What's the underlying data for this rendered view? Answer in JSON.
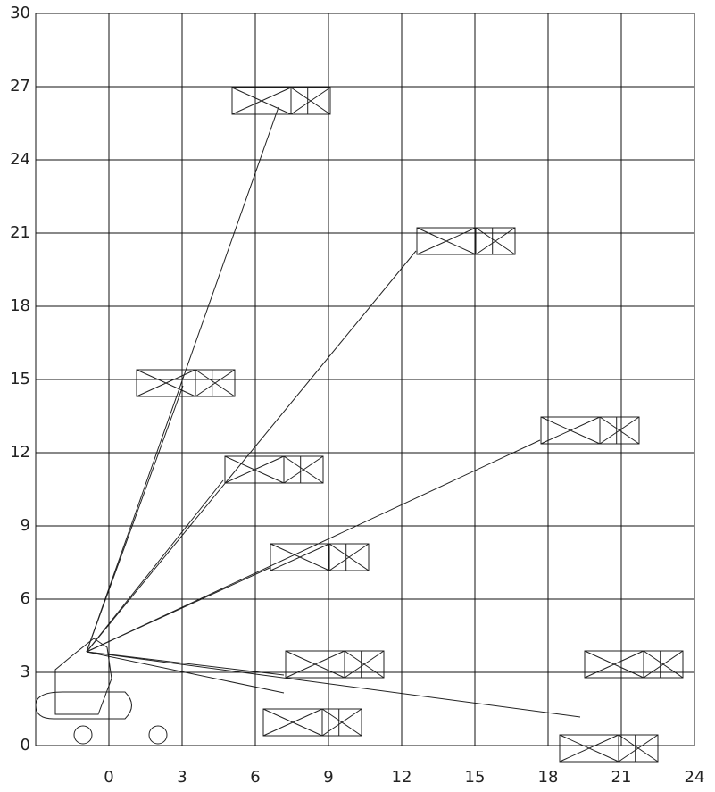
{
  "axes": {
    "xlim": [
      -3,
      24
    ],
    "ylim": [
      0,
      30
    ],
    "xticks": [
      0,
      3,
      6,
      9,
      12,
      15,
      18,
      21,
      24
    ],
    "yticks": [
      0,
      3,
      6,
      9,
      12,
      15,
      18,
      21,
      24,
      27,
      30
    ]
  }
}
